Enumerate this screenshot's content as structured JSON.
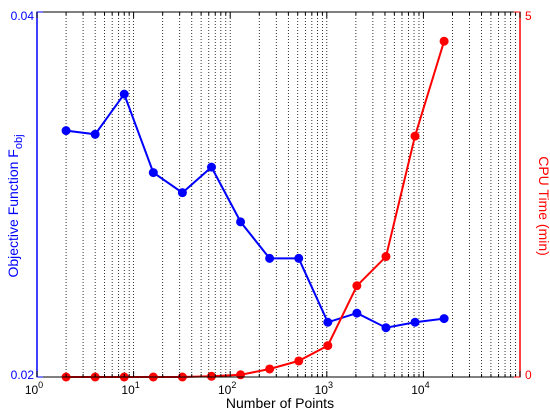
{
  "chart_data": {
    "type": "line",
    "title": "",
    "xlabel": "Number of Points",
    "x_scale": "log",
    "xlim": [
      1,
      100000
    ],
    "x_ticks": [
      {
        "value": 1,
        "base": "10",
        "exp": "0"
      },
      {
        "value": 10,
        "base": "10",
        "exp": "1"
      },
      {
        "value": 100,
        "base": "10",
        "exp": "2"
      },
      {
        "value": 1000,
        "base": "10",
        "exp": "3"
      },
      {
        "value": 10000,
        "base": "10",
        "exp": "4"
      }
    ],
    "grid": "vertical-minor-dotted",
    "y_left": {
      "label": "Objective Function F",
      "label_subscript": "obj",
      "lim": [
        0.02,
        0.04
      ],
      "ticks": [
        "0.02",
        "0.04"
      ],
      "tick_values": [
        0.02,
        0.04
      ],
      "color": "#0000ff"
    },
    "y_right": {
      "label": "CPU Time (min)",
      "lim": [
        0,
        5
      ],
      "ticks": [
        "0",
        "5"
      ],
      "tick_values": [
        0,
        5
      ],
      "color": "#ff0000"
    },
    "series": [
      {
        "axis": "left",
        "color": "#0000ff",
        "x": [
          2,
          4,
          8,
          16,
          32,
          64,
          128,
          256,
          512,
          1024,
          2048,
          4096,
          8192,
          16384
        ],
        "values": [
          0.0335,
          0.0333,
          0.0355,
          0.0312,
          0.0301,
          0.0315,
          0.0285,
          0.0265,
          0.0265,
          0.023,
          0.0235,
          0.0227,
          0.023,
          0.0232
        ]
      },
      {
        "axis": "right",
        "color": "#ff0000",
        "x": [
          2,
          4,
          8,
          16,
          32,
          64,
          128,
          256,
          512,
          1024,
          2048,
          4096,
          8192,
          16384
        ],
        "values": [
          0,
          0,
          0,
          0,
          0,
          0.01,
          0.03,
          0.11,
          0.22,
          0.43,
          1.25,
          1.65,
          3.3,
          4.6
        ]
      }
    ]
  }
}
